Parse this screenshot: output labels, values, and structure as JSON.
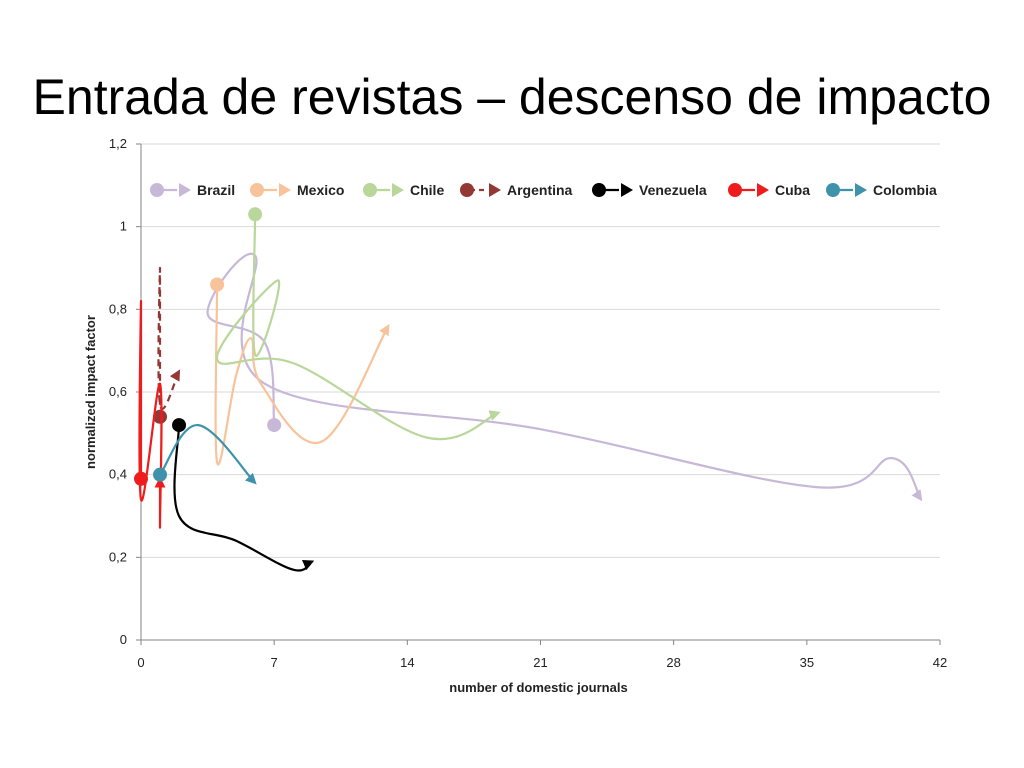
{
  "title": "Entrada de revistas – descenso de impacto",
  "chart_data": {
    "type": "scatter",
    "xlabel": "number of domestic  journals",
    "ylabel": "normalized impact factor",
    "xlim": [
      0,
      42
    ],
    "ylim": [
      0,
      1.2
    ],
    "x_ticks": [
      "0",
      "7",
      "14",
      "21",
      "28",
      "35",
      "42"
    ],
    "y_ticks": [
      "0",
      "0,2",
      "0,4",
      "0,6",
      "0,8",
      "1",
      "1,2"
    ],
    "grid": "horizontal",
    "legend_position": "top",
    "series": [
      {
        "name": "Brazil",
        "color": "#c7b8d8",
        "dashed": false,
        "points": [
          [
            7,
            0.52
          ],
          [
            6.5,
            0.72
          ],
          [
            3.5,
            0.79
          ],
          [
            6,
            0.93
          ],
          [
            6.5,
            0.62
          ],
          [
            21,
            0.51
          ],
          [
            35.5,
            0.37
          ],
          [
            39.5,
            0.44
          ],
          [
            41,
            0.34
          ]
        ]
      },
      {
        "name": "Mexico",
        "color": "#f8c39a",
        "dashed": false,
        "points": [
          [
            4,
            0.86
          ],
          [
            4,
            0.43
          ],
          [
            5,
            0.64
          ],
          [
            5.8,
            0.73
          ],
          [
            6.3,
            0.62
          ],
          [
            9.5,
            0.48
          ],
          [
            13,
            0.76
          ]
        ]
      },
      {
        "name": "Chile",
        "color": "#b9d79a",
        "dashed": false,
        "points": [
          [
            6,
            1.03
          ],
          [
            6,
            0.69
          ],
          [
            7.2,
            0.87
          ],
          [
            4,
            0.68
          ],
          [
            8,
            0.67
          ],
          [
            15,
            0.49
          ],
          [
            18.8,
            0.55
          ]
        ]
      },
      {
        "name": "Argentina",
        "color": "#953735",
        "dashed": true,
        "points": [
          [
            1,
            0.54
          ],
          [
            1,
            0.9
          ],
          [
            1,
            0.57
          ],
          [
            2,
            0.65
          ]
        ]
      },
      {
        "name": "Venezuela",
        "color": "#000000",
        "dashed": false,
        "points": [
          [
            2,
            0.52
          ],
          [
            2,
            0.3
          ],
          [
            5,
            0.24
          ],
          [
            8,
            0.17
          ],
          [
            9,
            0.19
          ]
        ]
      },
      {
        "name": "Cuba",
        "color": "#ee1c1c",
        "dashed": false,
        "points": [
          [
            0,
            0.39
          ],
          [
            0,
            0.82
          ],
          [
            0,
            0.34
          ],
          [
            1,
            0.62
          ],
          [
            1,
            0.28
          ],
          [
            1,
            0.39
          ]
        ]
      },
      {
        "name": "Colombia",
        "color": "#3e93aa",
        "dashed": false,
        "points": [
          [
            1,
            0.4
          ],
          [
            3,
            0.52
          ],
          [
            6,
            0.38
          ]
        ]
      }
    ]
  }
}
